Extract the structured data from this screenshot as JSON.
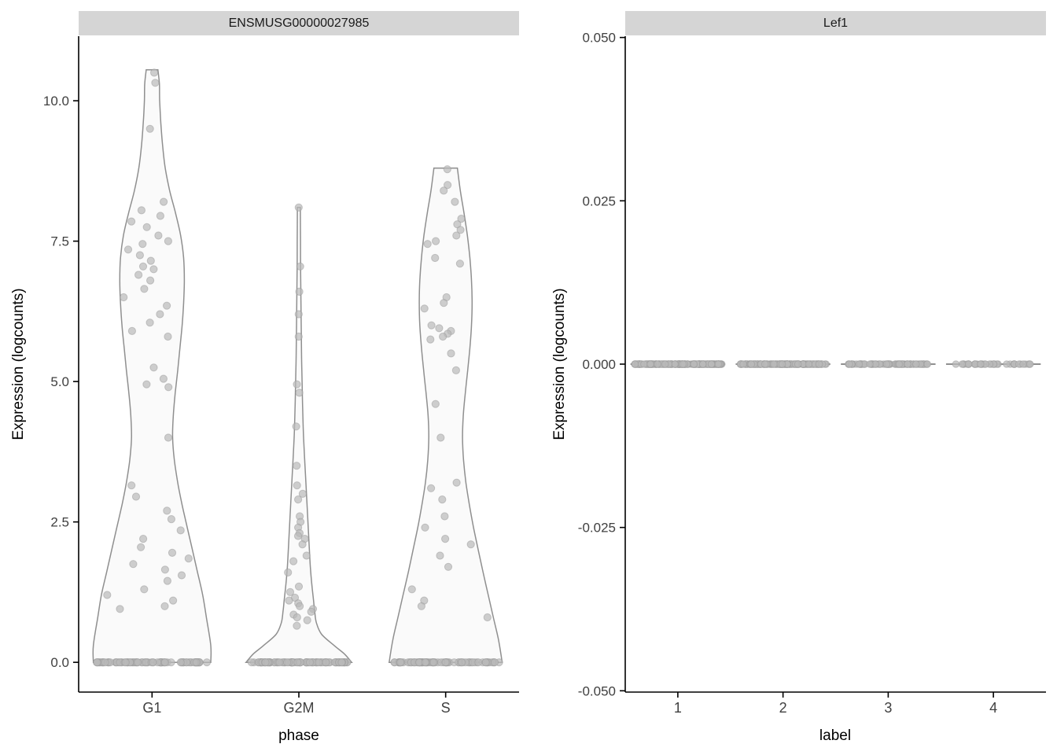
{
  "theme": {
    "background": "#ffffff",
    "strip_bg": "#d5d5d5",
    "strip_text_color": "#1a1a1a",
    "axis_line_color": "#000000",
    "tick_label_color": "#404040",
    "axis_title_color": "#000000",
    "violin_fill": "#fafafa",
    "violin_stroke": "#8f8f8f",
    "point_fill": "#b9b9b9",
    "point_stroke": "#999999"
  },
  "chart_data": [
    {
      "type": "violin",
      "title": "ENSMUSG00000027985",
      "xlabel": "phase",
      "ylabel": "Expression (logcounts)",
      "categories": [
        "G1",
        "G2M",
        "S"
      ],
      "ylim": [
        -0.53,
        11.15
      ],
      "yticks": [
        0.0,
        2.5,
        5.0,
        7.5,
        10.0
      ],
      "ytick_labels": [
        "0.0",
        "2.5",
        "5.0",
        "7.5",
        "10.0"
      ],
      "grid": false,
      "legend": "none",
      "violins": [
        {
          "category": "G1",
          "profile": [
            [
              0.0,
              0.4
            ],
            [
              0.3,
              0.4
            ],
            [
              0.8,
              0.37
            ],
            [
              1.2,
              0.345
            ],
            [
              1.6,
              0.31
            ],
            [
              2.0,
              0.275
            ],
            [
              2.4,
              0.24
            ],
            [
              2.8,
              0.205
            ],
            [
              3.2,
              0.175
            ],
            [
              3.6,
              0.152
            ],
            [
              4.0,
              0.14
            ],
            [
              4.4,
              0.145
            ],
            [
              4.8,
              0.158
            ],
            [
              5.2,
              0.175
            ],
            [
              5.6,
              0.19
            ],
            [
              6.0,
              0.205
            ],
            [
              6.4,
              0.215
            ],
            [
              6.8,
              0.22
            ],
            [
              7.2,
              0.215
            ],
            [
              7.6,
              0.195
            ],
            [
              8.0,
              0.16
            ],
            [
              8.4,
              0.12
            ],
            [
              8.8,
              0.09
            ],
            [
              9.2,
              0.072
            ],
            [
              9.6,
              0.06
            ],
            [
              10.0,
              0.052
            ],
            [
              10.3,
              0.05
            ],
            [
              10.55,
              0.04
            ]
          ]
        },
        {
          "category": "G2M",
          "profile": [
            [
              0.0,
              0.36
            ],
            [
              0.15,
              0.31
            ],
            [
              0.3,
              0.24
            ],
            [
              0.5,
              0.155
            ],
            [
              0.7,
              0.12
            ],
            [
              0.9,
              0.108
            ],
            [
              1.1,
              0.1
            ],
            [
              1.4,
              0.088
            ],
            [
              1.7,
              0.078
            ],
            [
              2.0,
              0.072
            ],
            [
              2.3,
              0.066
            ],
            [
              2.6,
              0.06
            ],
            [
              3.0,
              0.052
            ],
            [
              3.5,
              0.042
            ],
            [
              4.0,
              0.032
            ],
            [
              4.5,
              0.026
            ],
            [
              5.0,
              0.022
            ],
            [
              5.5,
              0.018
            ],
            [
              6.0,
              0.016
            ],
            [
              6.5,
              0.014
            ],
            [
              7.0,
              0.012
            ],
            [
              7.5,
              0.011
            ],
            [
              8.1,
              0.01
            ]
          ]
        },
        {
          "category": "S",
          "profile": [
            [
              0.0,
              0.385
            ],
            [
              0.4,
              0.36
            ],
            [
              0.8,
              0.325
            ],
            [
              1.2,
              0.29
            ],
            [
              1.6,
              0.255
            ],
            [
              2.0,
              0.222
            ],
            [
              2.4,
              0.19
            ],
            [
              2.8,
              0.162
            ],
            [
              3.2,
              0.138
            ],
            [
              3.6,
              0.122
            ],
            [
              4.0,
              0.115
            ],
            [
              4.4,
              0.12
            ],
            [
              4.8,
              0.134
            ],
            [
              5.2,
              0.15
            ],
            [
              5.6,
              0.165
            ],
            [
              6.0,
              0.176
            ],
            [
              6.4,
              0.18
            ],
            [
              6.8,
              0.176
            ],
            [
              7.2,
              0.165
            ],
            [
              7.6,
              0.148
            ],
            [
              8.0,
              0.125
            ],
            [
              8.4,
              0.1
            ],
            [
              8.8,
              0.08
            ]
          ]
        }
      ],
      "points": [
        {
          "category": "G1",
          "values": [
            10.5,
            10.32,
            9.5,
            8.2,
            8.05,
            7.95,
            7.85,
            7.75,
            7.6,
            7.5,
            7.45,
            7.35,
            7.25,
            7.15,
            7.05,
            7.0,
            6.9,
            6.8,
            6.65,
            6.5,
            6.35,
            6.2,
            6.05,
            5.9,
            5.8,
            5.25,
            5.05,
            4.95,
            4.9,
            4.0,
            3.15,
            2.95,
            2.7,
            2.55,
            2.35,
            2.2,
            2.05,
            1.95,
            1.85,
            1.75,
            1.65,
            1.55,
            1.45,
            1.3,
            1.2,
            1.1,
            1.0,
            0.95
          ],
          "zero_count": 85
        },
        {
          "category": "G2M",
          "values": [
            8.1,
            7.05,
            6.6,
            6.2,
            5.8,
            4.95,
            4.8,
            4.2,
            3.5,
            3.15,
            3.0,
            2.9,
            2.6,
            2.5,
            2.4,
            2.3,
            2.25,
            2.2,
            2.1,
            1.9,
            1.8,
            1.6,
            1.35,
            1.25,
            1.15,
            1.1,
            1.05,
            1.0,
            0.95,
            0.9,
            0.85,
            0.8,
            0.75,
            0.65
          ],
          "zero_count": 95
        },
        {
          "category": "S",
          "values": [
            8.78,
            8.5,
            8.4,
            8.2,
            7.9,
            7.8,
            7.7,
            7.6,
            7.5,
            7.45,
            7.2,
            7.1,
            6.5,
            6.4,
            6.3,
            6.0,
            5.95,
            5.9,
            5.85,
            5.8,
            5.75,
            5.5,
            5.2,
            4.6,
            4.0,
            3.2,
            3.1,
            2.9,
            2.6,
            2.4,
            2.2,
            2.1,
            1.9,
            1.7,
            1.3,
            1.1,
            1.0,
            0.8
          ],
          "zero_count": 80
        }
      ]
    },
    {
      "type": "strip",
      "title": "Lef1",
      "xlabel": "label",
      "ylabel": "Expression (logcounts)",
      "categories": [
        "1",
        "2",
        "3",
        "4"
      ],
      "ylim": [
        -0.0502,
        0.0502
      ],
      "yticks": [
        -0.05,
        -0.025,
        0.0,
        0.025,
        0.05
      ],
      "ytick_labels": [
        "-0.050",
        "-0.025",
        "0.000",
        "0.025",
        "0.050"
      ],
      "grid": false,
      "legend": "none",
      "zero_line_halfwidth": 0.45,
      "points": [
        {
          "category": "1",
          "value": 0.0,
          "count": 170,
          "spread": 0.42
        },
        {
          "category": "2",
          "value": 0.0,
          "count": 140,
          "spread": 0.41
        },
        {
          "category": "3",
          "value": 0.0,
          "count": 75,
          "spread": 0.38
        },
        {
          "category": "4",
          "value": 0.0,
          "count": 38,
          "spread": 0.36
        }
      ]
    }
  ]
}
